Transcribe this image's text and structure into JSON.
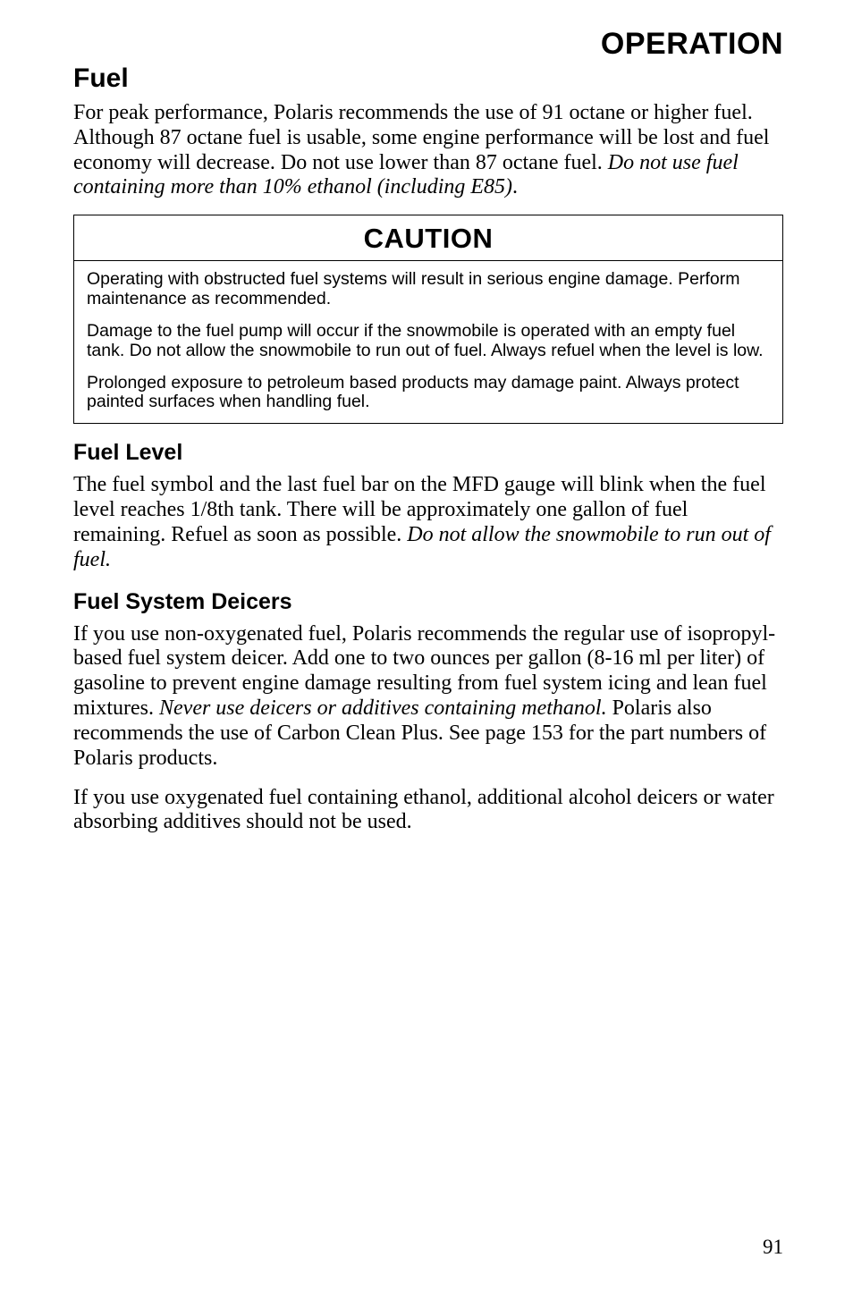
{
  "running_head": "OPERATION",
  "h1": "Fuel",
  "intro_pre": "For peak performance, Polaris recommends the use of 91 octane or higher fuel. Although 87 octane fuel is usable, some engine performance will be lost and fuel economy will decrease. Do not use lower than 87 octane fuel. ",
  "intro_em": "Do not use fuel containing more than 10% ethanol (including E85)",
  "intro_post": ".",
  "caution": {
    "title": "CAUTION",
    "p1": "Operating with obstructed fuel systems will result in serious engine damage. Perform maintenance as recommended.",
    "p2": "Damage to the fuel pump will occur if the snowmobile is operated with an empty fuel tank. Do not allow the snowmobile to run out of fuel. Always refuel when the level is low.",
    "p3": "Prolonged exposure to petroleum based products may damage paint. Always protect painted surfaces when handling fuel."
  },
  "fuel_level": {
    "heading": "Fuel Level",
    "body_pre": "The fuel symbol and the last fuel bar on the MFD gauge will blink when the fuel level reaches 1/8th tank. There will be approximately one gallon of fuel remaining. Refuel as soon as possible. ",
    "body_em": "Do not allow the snowmobile to run out of fuel."
  },
  "deicers": {
    "heading": "Fuel System Deicers",
    "p1_pre": "If you use non-oxygenated fuel, Polaris recommends the regular use of isopropyl-based fuel system deicer. Add one to two ounces per gallon (8-16 ml per liter) of gasoline to prevent engine damage resulting from fuel system icing and lean fuel mixtures. ",
    "p1_em": "Never use deicers or additives containing methanol.",
    "p1_post": " Polaris also recommends the use of Carbon Clean Plus. See page 153 for the part numbers of Polaris products.",
    "p2": "If you use oxygenated fuel containing ethanol, additional alcohol deicers or water absorbing additives should not be used."
  },
  "page_number": "91"
}
